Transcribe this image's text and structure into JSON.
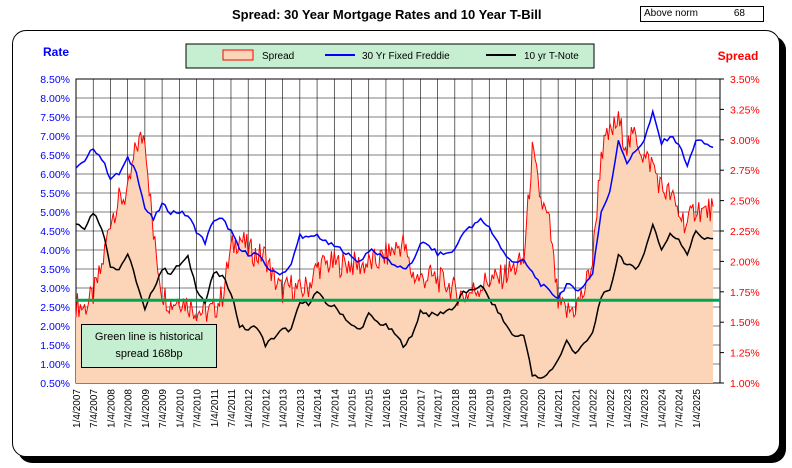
{
  "title": "Spread:  30 Year Mortgage Rates and 10 Year T-Bill",
  "norm_box": {
    "label": "Above norm",
    "value": "68"
  },
  "note": {
    "line1": "Green line is historical",
    "line2": "spread 168bp"
  },
  "colors": {
    "spread_fill": "#fcd5b8",
    "spread_line": "#ff0000",
    "mortgage": "#0000ff",
    "tnote": "#000000",
    "norm_line": "#00a650",
    "left_axis_text": "#0000ff",
    "right_axis_text": "#ff0000",
    "legend_bg": "#c6efd1"
  },
  "chart_data": {
    "type": "line",
    "title": "Spread:  30 Year Mortgage Rates and 10 Year T-Bill",
    "ylabel": "Rate",
    "y2label": "Spread",
    "ylim": [
      0.5,
      8.5
    ],
    "y2lim": [
      1.0,
      3.5
    ],
    "yticks": [
      "8.50%",
      "8.00%",
      "7.50%",
      "7.00%",
      "6.50%",
      "6.00%",
      "5.50%",
      "5.00%",
      "4.50%",
      "4.00%",
      "3.50%",
      "3.00%",
      "2.50%",
      "2.00%",
      "1.50%",
      "1.00%",
      "0.50%"
    ],
    "y2ticks": [
      "3.50%",
      "3.25%",
      "3.00%",
      "2.75%",
      "2.50%",
      "2.25%",
      "2.00%",
      "1.75%",
      "1.50%",
      "1.25%",
      "1.00%"
    ],
    "xticks": [
      "1/4/2007",
      "7/4/2007",
      "1/4/2008",
      "7/4/2008",
      "1/4/2009",
      "7/4/2009",
      "1/4/2010",
      "7/4/2010",
      "1/4/2011",
      "7/4/2011",
      "1/4/2012",
      "7/4/2012",
      "1/4/2013",
      "7/4/2013",
      "1/4/2014",
      "7/4/2014",
      "1/4/2015",
      "7/4/2015",
      "1/4/2016",
      "7/4/2016",
      "1/4/2017",
      "7/4/2017",
      "1/4/2018",
      "7/4/2018",
      "1/4/2019",
      "7/4/2019",
      "1/4/2020",
      "7/4/2020",
      "1/4/2021",
      "7/4/2021",
      "1/4/2022",
      "7/4/2022",
      "1/4/2023",
      "7/4/2023",
      "1/4/2024",
      "7/4/2024",
      "1/4/2025"
    ],
    "grid": true,
    "legend_placement": "top-center",
    "norm_spread": 1.68,
    "x": [
      2007.0,
      2007.25,
      2007.5,
      2007.75,
      2008.0,
      2008.25,
      2008.5,
      2008.75,
      2009.0,
      2009.25,
      2009.5,
      2009.75,
      2010.0,
      2010.25,
      2010.5,
      2010.75,
      2011.0,
      2011.25,
      2011.5,
      2011.75,
      2012.0,
      2012.25,
      2012.5,
      2012.75,
      2013.0,
      2013.25,
      2013.5,
      2013.75,
      2014.0,
      2014.25,
      2014.5,
      2014.75,
      2015.0,
      2015.25,
      2015.5,
      2015.75,
      2016.0,
      2016.25,
      2016.5,
      2016.75,
      2017.0,
      2017.25,
      2017.5,
      2017.75,
      2018.0,
      2018.25,
      2018.5,
      2018.75,
      2019.0,
      2019.25,
      2019.5,
      2019.75,
      2020.0,
      2020.25,
      2020.5,
      2020.75,
      2021.0,
      2021.25,
      2021.5,
      2021.75,
      2022.0,
      2022.25,
      2022.5,
      2022.75,
      2023.0,
      2023.25,
      2023.5,
      2023.75,
      2024.0,
      2024.25,
      2024.5,
      2024.75,
      2025.0,
      2025.25,
      2025.5
    ],
    "series": [
      {
        "name": "Spread",
        "axis": "right",
        "values": [
          1.65,
          1.62,
          1.72,
          1.95,
          2.35,
          2.5,
          2.55,
          2.95,
          3.05,
          2.2,
          1.75,
          1.65,
          1.7,
          1.65,
          1.6,
          1.58,
          1.6,
          1.72,
          2.1,
          2.2,
          2.1,
          2.05,
          2.05,
          1.85,
          1.75,
          1.8,
          1.75,
          1.8,
          1.95,
          1.98,
          1.98,
          1.98,
          1.98,
          1.97,
          1.98,
          2.0,
          2.05,
          2.1,
          2.15,
          1.9,
          1.85,
          1.88,
          1.85,
          1.82,
          1.75,
          1.72,
          1.75,
          1.8,
          1.85,
          1.85,
          1.9,
          1.95,
          2.0,
          2.9,
          2.5,
          2.3,
          1.65,
          1.58,
          1.62,
          1.75,
          2.0,
          2.9,
          3.05,
          3.15,
          2.95,
          3.05,
          2.85,
          2.8,
          2.6,
          2.55,
          2.4,
          2.3,
          2.45,
          2.4,
          2.45
        ]
      },
      {
        "name": "30 Yr Fixed Freddie",
        "axis": "left",
        "values": [
          6.2,
          6.3,
          6.7,
          6.4,
          5.9,
          6.0,
          6.4,
          6.1,
          5.1,
          4.8,
          5.2,
          5.0,
          5.0,
          4.9,
          4.5,
          4.2,
          4.8,
          4.8,
          4.5,
          4.0,
          3.9,
          3.9,
          3.6,
          3.4,
          3.4,
          3.6,
          4.4,
          4.3,
          4.4,
          4.2,
          4.1,
          4.0,
          3.8,
          3.7,
          4.0,
          3.9,
          3.8,
          3.6,
          3.5,
          3.6,
          4.2,
          4.1,
          3.9,
          3.9,
          4.0,
          4.5,
          4.6,
          4.8,
          4.6,
          4.2,
          3.8,
          3.7,
          3.7,
          3.4,
          3.1,
          2.9,
          2.75,
          3.1,
          2.95,
          3.05,
          3.4,
          5.0,
          5.5,
          6.9,
          6.3,
          6.6,
          6.9,
          7.6,
          6.8,
          7.0,
          6.8,
          6.2,
          6.9,
          6.8,
          6.7
        ]
      },
      {
        "name": "10 yr T-Note",
        "axis": "left",
        "values": [
          4.7,
          4.6,
          5.0,
          4.6,
          3.6,
          3.5,
          3.9,
          3.2,
          2.4,
          3.0,
          3.5,
          3.4,
          3.6,
          3.8,
          3.0,
          2.6,
          3.4,
          3.3,
          2.9,
          2.0,
          1.9,
          2.0,
          1.5,
          1.7,
          1.9,
          1.9,
          2.6,
          2.6,
          2.9,
          2.6,
          2.5,
          2.3,
          2.0,
          1.9,
          2.3,
          2.1,
          2.0,
          1.8,
          1.5,
          1.7,
          2.4,
          2.3,
          2.3,
          2.4,
          2.5,
          2.9,
          2.9,
          3.1,
          2.7,
          2.4,
          2.0,
          1.7,
          1.8,
          0.7,
          0.6,
          0.8,
          1.1,
          1.6,
          1.3,
          1.5,
          1.8,
          2.8,
          2.9,
          3.9,
          3.6,
          3.5,
          3.9,
          4.7,
          4.0,
          4.4,
          4.3,
          3.9,
          4.5,
          4.3,
          4.3
        ]
      }
    ]
  }
}
